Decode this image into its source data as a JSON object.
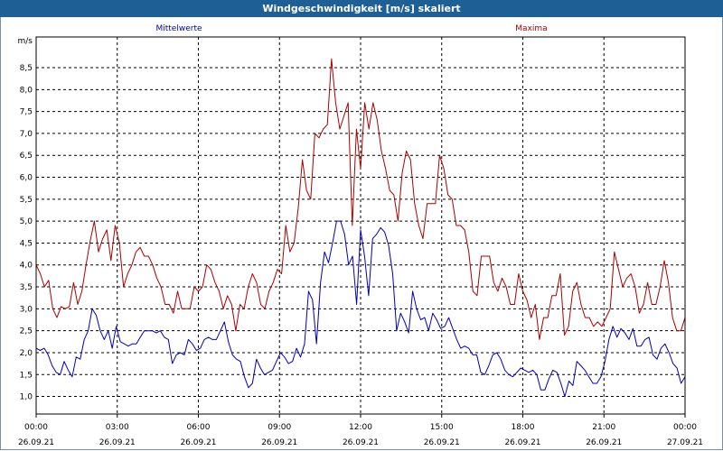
{
  "window": {
    "title": "Windgeschwindigkeit [m/s] skaliert"
  },
  "chart_data": {
    "type": "line",
    "title": "Windgeschwindigkeit [m/s] skaliert",
    "ylabel": "m/s",
    "xlabel": "",
    "ylim": [
      0.6,
      9.2
    ],
    "xlim_hours": [
      0,
      24
    ],
    "grid": true,
    "legend_placement": "top",
    "y_ticks": [
      "1,0",
      "1,5",
      "2,0",
      "2,5",
      "3,0",
      "3,5",
      "4,0",
      "4,5",
      "5,0",
      "5,5",
      "6,0",
      "6,5",
      "7,0",
      "7,5",
      "8,0",
      "8,5"
    ],
    "x_ticks": [
      {
        "time": "00:00",
        "date": "26.09.21"
      },
      {
        "time": "03:00",
        "date": "26.09.21"
      },
      {
        "time": "06:00",
        "date": "26.09.21"
      },
      {
        "time": "09:00",
        "date": "26.09.21"
      },
      {
        "time": "12:00",
        "date": "26.09.21"
      },
      {
        "time": "15:00",
        "date": "26.09.21"
      },
      {
        "time": "18:00",
        "date": "26.09.21"
      },
      {
        "time": "21:00",
        "date": "26.09.21"
      },
      {
        "time": "00:00",
        "date": "27.09.21"
      }
    ],
    "series": [
      {
        "name": "Mittelwerte",
        "color": "#0000b4",
        "values": [
          2.1,
          2.05,
          2.1,
          1.95,
          1.7,
          1.55,
          1.5,
          1.8,
          1.6,
          1.45,
          1.9,
          1.85,
          2.3,
          2.5,
          3.0,
          2.85,
          2.5,
          2.3,
          2.5,
          2.1,
          2.6,
          2.25,
          2.2,
          2.15,
          2.2,
          2.2,
          2.35,
          2.5,
          2.5,
          2.5,
          2.45,
          2.5,
          2.35,
          2.3,
          1.75,
          1.95,
          2.0,
          1.95,
          2.3,
          2.2,
          2.05,
          2.1,
          2.3,
          2.35,
          2.3,
          2.3,
          2.5,
          2.7,
          2.25,
          1.95,
          1.85,
          1.8,
          1.45,
          1.2,
          1.3,
          1.85,
          1.65,
          1.5,
          1.55,
          1.6,
          1.8,
          2.0,
          1.9,
          1.75,
          1.8,
          2.1,
          1.9,
          2.2,
          3.4,
          3.2,
          2.2,
          3.6,
          4.3,
          4.05,
          4.5,
          5.0,
          5.0,
          4.7,
          4.0,
          4.2,
          3.1,
          4.8,
          4.2,
          3.3,
          4.6,
          4.7,
          4.85,
          4.75,
          4.45,
          3.8,
          2.5,
          2.9,
          2.7,
          2.45,
          3.4,
          3.0,
          2.75,
          2.8,
          2.5,
          2.9,
          2.75,
          2.55,
          2.6,
          2.8,
          2.55,
          2.3,
          2.1,
          2.15,
          2.1,
          1.95,
          1.95,
          1.55,
          1.5,
          1.7,
          1.95,
          2.0,
          1.85,
          1.6,
          1.5,
          1.45,
          1.55,
          1.65,
          1.6,
          1.55,
          1.6,
          1.5,
          1.15,
          1.15,
          1.4,
          1.6,
          1.55,
          1.3,
          1.0,
          1.35,
          1.25,
          1.8,
          1.7,
          1.6,
          1.45,
          1.3,
          1.3,
          1.45,
          1.8,
          2.3,
          2.6,
          2.35,
          2.55,
          2.45,
          2.3,
          2.55,
          2.15,
          2.15,
          2.3,
          2.35,
          1.95,
          1.85,
          2.1,
          2.2,
          2.0,
          1.75,
          1.65,
          1.3,
          1.45
        ]
      },
      {
        "name": "Maxima",
        "color": "#aa0000",
        "values": [
          4.0,
          3.8,
          3.5,
          3.65,
          3.0,
          2.8,
          3.05,
          3.0,
          3.05,
          3.6,
          3.1,
          3.4,
          4.0,
          4.55,
          5.0,
          4.3,
          4.6,
          4.8,
          4.1,
          4.9,
          4.5,
          3.5,
          3.8,
          4.0,
          4.3,
          4.4,
          4.2,
          4.2,
          4.0,
          3.7,
          3.5,
          3.1,
          3.1,
          2.9,
          3.4,
          3.0,
          3.0,
          3.0,
          3.5,
          3.4,
          3.5,
          4.0,
          3.9,
          3.6,
          3.4,
          3.0,
          3.3,
          3.1,
          2.5,
          3.1,
          3.0,
          3.5,
          3.8,
          3.6,
          3.1,
          3.0,
          3.4,
          3.6,
          3.9,
          3.8,
          4.9,
          4.3,
          4.5,
          5.3,
          6.4,
          5.7,
          5.5,
          7.0,
          6.9,
          7.1,
          7.2,
          8.7,
          7.7,
          7.1,
          7.4,
          7.7,
          4.9,
          7.1,
          6.2,
          7.7,
          7.1,
          7.7,
          7.3,
          6.6,
          6.2,
          5.7,
          5.6,
          5.0,
          6.1,
          6.6,
          6.4,
          5.4,
          4.9,
          4.6,
          5.4,
          5.4,
          5.4,
          6.5,
          6.2,
          5.6,
          5.5,
          4.9,
          4.9,
          4.8,
          4.3,
          3.4,
          3.3,
          4.2,
          4.2,
          4.2,
          3.6,
          3.4,
          3.7,
          3.5,
          3.1,
          3.1,
          3.8,
          3.4,
          3.2,
          2.8,
          3.1,
          2.3,
          2.8,
          2.8,
          3.3,
          3.3,
          3.8,
          2.4,
          2.6,
          3.4,
          3.6,
          3.1,
          2.8,
          2.8,
          2.6,
          2.7,
          2.6,
          2.8,
          3.0,
          4.3,
          3.9,
          3.5,
          3.7,
          3.8,
          3.5,
          2.9,
          3.1,
          3.6,
          3.1,
          3.1,
          3.5,
          4.1,
          3.6,
          2.8,
          2.5,
          2.5,
          2.8
        ]
      }
    ]
  }
}
